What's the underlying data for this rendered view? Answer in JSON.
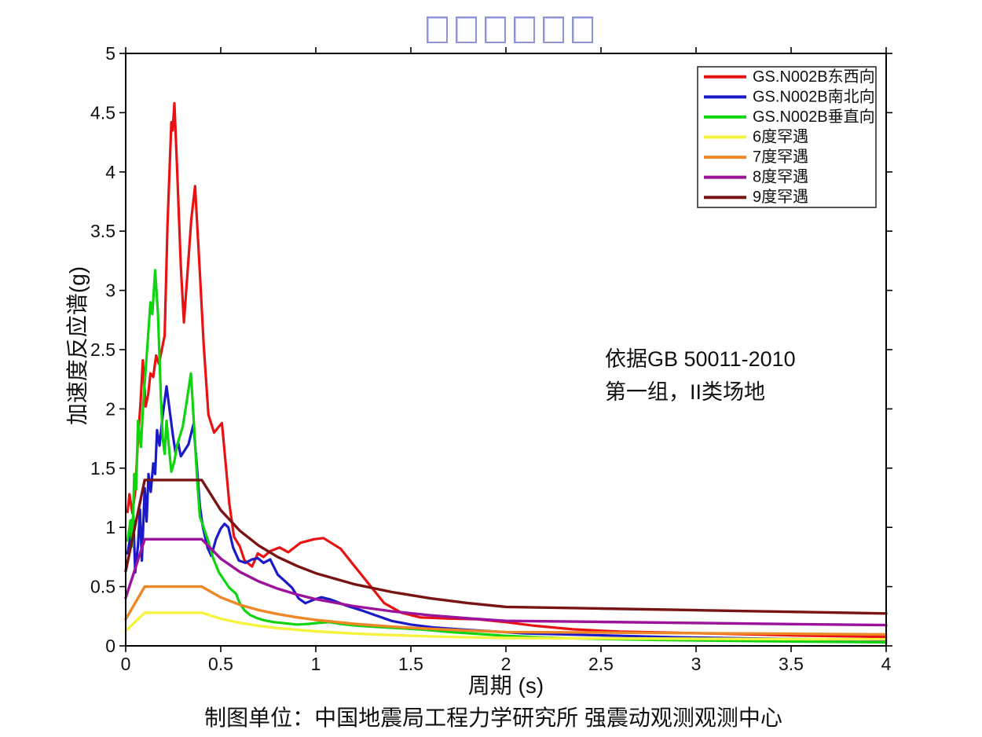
{
  "title": {
    "text": "□□□□□□",
    "rendered_as": "missing-glyph boxes",
    "box_count": 6,
    "box_color": "#8f94d9"
  },
  "annotation": {
    "line1": "依据GB 50011-2010",
    "line2": "第一组，II类场地"
  },
  "caption": {
    "text": "制图单位：中国地震局工程力学研究所 强震动观测观测中心"
  },
  "chart_data": {
    "type": "line",
    "xlabel": "周期 (s)",
    "ylabel": "加速度反应谱(g)",
    "xlim": [
      0,
      4
    ],
    "ylim": [
      0,
      5
    ],
    "x_ticks": [
      "0",
      "0.5",
      "1",
      "1.5",
      "2",
      "2.5",
      "3",
      "3.5",
      "4"
    ],
    "y_ticks": [
      "0",
      "0.5",
      "1",
      "1.5",
      "2",
      "2.5",
      "3",
      "3.5",
      "4",
      "4.5",
      "5"
    ],
    "grid": false,
    "legend_position": "top-right",
    "axis_color": "#000000",
    "series": [
      {
        "id": "ew",
        "name": "GS.N002B东西向",
        "color": "#e81212",
        "width": 3.2,
        "points": [
          [
            0.01,
            1.13
          ],
          [
            0.02,
            1.28
          ],
          [
            0.035,
            1.12
          ],
          [
            0.05,
            1.3
          ],
          [
            0.065,
            1.75
          ],
          [
            0.078,
            2.05
          ],
          [
            0.09,
            2.41
          ],
          [
            0.105,
            2.02
          ],
          [
            0.118,
            2.12
          ],
          [
            0.13,
            2.3
          ],
          [
            0.145,
            2.27
          ],
          [
            0.16,
            2.45
          ],
          [
            0.175,
            2.38
          ],
          [
            0.19,
            2.5
          ],
          [
            0.205,
            2.62
          ],
          [
            0.22,
            3.55
          ],
          [
            0.24,
            4.42
          ],
          [
            0.247,
            4.35
          ],
          [
            0.256,
            4.58
          ],
          [
            0.27,
            4.05
          ],
          [
            0.29,
            3.2
          ],
          [
            0.306,
            2.73
          ],
          [
            0.325,
            3.15
          ],
          [
            0.345,
            3.6
          ],
          [
            0.365,
            3.88
          ],
          [
            0.39,
            3.15
          ],
          [
            0.41,
            2.55
          ],
          [
            0.435,
            1.95
          ],
          [
            0.465,
            1.8
          ],
          [
            0.49,
            1.85
          ],
          [
            0.506,
            1.88
          ],
          [
            0.525,
            1.55
          ],
          [
            0.545,
            1.2
          ],
          [
            0.57,
            0.92
          ],
          [
            0.6,
            0.84
          ],
          [
            0.625,
            0.72
          ],
          [
            0.665,
            0.67
          ],
          [
            0.695,
            0.78
          ],
          [
            0.725,
            0.75
          ],
          [
            0.76,
            0.8
          ],
          [
            0.81,
            0.83
          ],
          [
            0.855,
            0.79
          ],
          [
            0.92,
            0.87
          ],
          [
            0.99,
            0.9
          ],
          [
            1.04,
            0.91
          ],
          [
            1.09,
            0.86
          ],
          [
            1.13,
            0.82
          ],
          [
            1.2,
            0.68
          ],
          [
            1.28,
            0.52
          ],
          [
            1.36,
            0.36
          ],
          [
            1.45,
            0.28
          ],
          [
            1.55,
            0.24
          ],
          [
            1.7,
            0.23
          ],
          [
            1.85,
            0.225
          ],
          [
            2.0,
            0.2
          ],
          [
            2.15,
            0.17
          ],
          [
            2.35,
            0.14
          ],
          [
            2.6,
            0.12
          ],
          [
            2.9,
            0.11
          ],
          [
            3.2,
            0.1
          ],
          [
            3.6,
            0.085
          ],
          [
            4.0,
            0.075
          ]
        ]
      },
      {
        "id": "ns",
        "name": "GS.N002B南北向",
        "color": "#1a1ac9",
        "width": 3.2,
        "points": [
          [
            0.01,
            0.78
          ],
          [
            0.025,
            0.93
          ],
          [
            0.04,
            1.1
          ],
          [
            0.05,
            0.62
          ],
          [
            0.065,
            0.85
          ],
          [
            0.075,
            1.15
          ],
          [
            0.085,
            0.72
          ],
          [
            0.1,
            1.33
          ],
          [
            0.11,
            1.05
          ],
          [
            0.12,
            1.45
          ],
          [
            0.132,
            1.3
          ],
          [
            0.145,
            1.54
          ],
          [
            0.155,
            1.45
          ],
          [
            0.165,
            1.82
          ],
          [
            0.178,
            1.69
          ],
          [
            0.195,
            1.95
          ],
          [
            0.215,
            2.19
          ],
          [
            0.235,
            1.94
          ],
          [
            0.248,
            1.78
          ],
          [
            0.262,
            1.63
          ],
          [
            0.275,
            1.72
          ],
          [
            0.29,
            1.6
          ],
          [
            0.31,
            1.65
          ],
          [
            0.33,
            1.7
          ],
          [
            0.356,
            1.87
          ],
          [
            0.375,
            1.5
          ],
          [
            0.39,
            1.18
          ],
          [
            0.405,
            1.01
          ],
          [
            0.43,
            0.83
          ],
          [
            0.45,
            0.76
          ],
          [
            0.475,
            0.9
          ],
          [
            0.5,
            0.99
          ],
          [
            0.52,
            1.03
          ],
          [
            0.54,
            1.0
          ],
          [
            0.565,
            0.83
          ],
          [
            0.595,
            0.72
          ],
          [
            0.63,
            0.7
          ],
          [
            0.665,
            0.73
          ],
          [
            0.695,
            0.74
          ],
          [
            0.725,
            0.7
          ],
          [
            0.76,
            0.73
          ],
          [
            0.8,
            0.6
          ],
          [
            0.835,
            0.55
          ],
          [
            0.875,
            0.49
          ],
          [
            0.91,
            0.4
          ],
          [
            0.945,
            0.36
          ],
          [
            0.99,
            0.39
          ],
          [
            1.03,
            0.41
          ],
          [
            1.08,
            0.39
          ],
          [
            1.16,
            0.34
          ],
          [
            1.24,
            0.3
          ],
          [
            1.31,
            0.26
          ],
          [
            1.4,
            0.21
          ],
          [
            1.5,
            0.18
          ],
          [
            1.62,
            0.155
          ],
          [
            1.75,
            0.14
          ],
          [
            1.9,
            0.125
          ],
          [
            2.1,
            0.105
          ],
          [
            2.35,
            0.095
          ],
          [
            2.6,
            0.085
          ],
          [
            2.9,
            0.072
          ],
          [
            3.2,
            0.065
          ],
          [
            3.6,
            0.056
          ],
          [
            4.0,
            0.05
          ]
        ]
      },
      {
        "id": "ud",
        "name": "GS.N002B垂直向",
        "color": "#10d410",
        "width": 3.2,
        "points": [
          [
            0.01,
            0.89
          ],
          [
            0.025,
            1.06
          ],
          [
            0.035,
            0.84
          ],
          [
            0.045,
            1.45
          ],
          [
            0.055,
            1.32
          ],
          [
            0.065,
            1.9
          ],
          [
            0.08,
            1.68
          ],
          [
            0.09,
            1.98
          ],
          [
            0.1,
            2.22
          ],
          [
            0.115,
            2.55
          ],
          [
            0.13,
            2.9
          ],
          [
            0.14,
            2.8
          ],
          [
            0.155,
            3.17
          ],
          [
            0.17,
            2.8
          ],
          [
            0.185,
            2.1
          ],
          [
            0.195,
            1.75
          ],
          [
            0.205,
            1.62
          ],
          [
            0.215,
            1.9
          ],
          [
            0.225,
            1.72
          ],
          [
            0.24,
            1.47
          ],
          [
            0.255,
            1.55
          ],
          [
            0.27,
            1.69
          ],
          [
            0.3,
            1.85
          ],
          [
            0.32,
            2.05
          ],
          [
            0.343,
            2.3
          ],
          [
            0.36,
            1.85
          ],
          [
            0.375,
            1.42
          ],
          [
            0.39,
            1.09
          ],
          [
            0.41,
            1.0
          ],
          [
            0.435,
            0.88
          ],
          [
            0.46,
            0.74
          ],
          [
            0.49,
            0.62
          ],
          [
            0.52,
            0.55
          ],
          [
            0.545,
            0.49
          ],
          [
            0.58,
            0.44
          ],
          [
            0.6,
            0.36
          ],
          [
            0.625,
            0.3
          ],
          [
            0.655,
            0.26
          ],
          [
            0.69,
            0.235
          ],
          [
            0.73,
            0.215
          ],
          [
            0.78,
            0.2
          ],
          [
            0.84,
            0.19
          ],
          [
            0.9,
            0.18
          ],
          [
            0.96,
            0.185
          ],
          [
            1.02,
            0.195
          ],
          [
            1.07,
            0.2
          ],
          [
            1.13,
            0.185
          ],
          [
            1.22,
            0.17
          ],
          [
            1.32,
            0.16
          ],
          [
            1.45,
            0.148
          ],
          [
            1.58,
            0.135
          ],
          [
            1.72,
            0.115
          ],
          [
            1.86,
            0.1
          ],
          [
            2.0,
            0.085
          ],
          [
            2.2,
            0.07
          ],
          [
            2.5,
            0.058
          ],
          [
            2.8,
            0.05
          ],
          [
            3.2,
            0.042
          ],
          [
            3.6,
            0.035
          ],
          [
            4.0,
            0.03
          ]
        ]
      },
      {
        "id": "rare6",
        "name": "6度罕遇",
        "color": "#f6f33e",
        "width": 3.4,
        "points": [
          [
            0,
            0.126
          ],
          [
            0.1,
            0.28
          ],
          [
            0.4,
            0.28
          ],
          [
            0.5,
            0.229
          ],
          [
            0.6,
            0.194
          ],
          [
            0.7,
            0.169
          ],
          [
            0.8,
            0.15
          ],
          [
            0.9,
            0.135
          ],
          [
            1.0,
            0.123
          ],
          [
            1.2,
            0.104
          ],
          [
            1.4,
            0.091
          ],
          [
            1.6,
            0.08
          ],
          [
            1.8,
            0.072
          ],
          [
            2.0,
            0.066
          ],
          [
            2.5,
            0.063
          ],
          [
            3.0,
            0.06
          ],
          [
            3.5,
            0.057
          ],
          [
            4.0,
            0.055
          ]
        ]
      },
      {
        "id": "rare7",
        "name": "7度罕遇",
        "color": "#ee8826",
        "width": 3.4,
        "points": [
          [
            0,
            0.225
          ],
          [
            0.1,
            0.5
          ],
          [
            0.4,
            0.5
          ],
          [
            0.5,
            0.409
          ],
          [
            0.6,
            0.347
          ],
          [
            0.7,
            0.302
          ],
          [
            0.8,
            0.268
          ],
          [
            0.9,
            0.241
          ],
          [
            1.0,
            0.219
          ],
          [
            1.2,
            0.186
          ],
          [
            1.4,
            0.162
          ],
          [
            1.6,
            0.144
          ],
          [
            1.8,
            0.129
          ],
          [
            2.0,
            0.117
          ],
          [
            2.5,
            0.112
          ],
          [
            3.0,
            0.107
          ],
          [
            3.5,
            0.102
          ],
          [
            4.0,
            0.097
          ]
        ]
      },
      {
        "id": "rare8",
        "name": "8度罕遇",
        "color": "#9d129b",
        "width": 3.4,
        "points": [
          [
            0,
            0.405
          ],
          [
            0.1,
            0.9
          ],
          [
            0.4,
            0.9
          ],
          [
            0.5,
            0.736
          ],
          [
            0.6,
            0.625
          ],
          [
            0.7,
            0.544
          ],
          [
            0.8,
            0.482
          ],
          [
            0.9,
            0.434
          ],
          [
            1.0,
            0.394
          ],
          [
            1.2,
            0.335
          ],
          [
            1.4,
            0.292
          ],
          [
            1.6,
            0.258
          ],
          [
            1.8,
            0.232
          ],
          [
            2.0,
            0.211
          ],
          [
            2.5,
            0.202
          ],
          [
            3.0,
            0.193
          ],
          [
            3.5,
            0.184
          ],
          [
            4.0,
            0.175
          ]
        ]
      },
      {
        "id": "rare9",
        "name": "9度罕遇",
        "color": "#7a1414",
        "width": 3.4,
        "points": [
          [
            0,
            0.63
          ],
          [
            0.1,
            1.4
          ],
          [
            0.4,
            1.4
          ],
          [
            0.5,
            1.145
          ],
          [
            0.6,
            0.972
          ],
          [
            0.7,
            0.846
          ],
          [
            0.8,
            0.75
          ],
          [
            0.9,
            0.675
          ],
          [
            1.0,
            0.613
          ],
          [
            1.2,
            0.521
          ],
          [
            1.4,
            0.454
          ],
          [
            1.6,
            0.402
          ],
          [
            1.8,
            0.361
          ],
          [
            2.0,
            0.329
          ],
          [
            2.5,
            0.315
          ],
          [
            3.0,
            0.301
          ],
          [
            3.5,
            0.287
          ],
          [
            4.0,
            0.273
          ]
        ]
      }
    ]
  },
  "legend": {
    "border_color": "#222222",
    "items": [
      {
        "label": "GS.N002B东西向",
        "color": "#e81212"
      },
      {
        "label": "GS.N002B南北向",
        "color": "#1a1ac9"
      },
      {
        "label": "GS.N002B垂直向",
        "color": "#10d410"
      },
      {
        "label": "6度罕遇",
        "color": "#f6f33e"
      },
      {
        "label": "7度罕遇",
        "color": "#ee8826"
      },
      {
        "label": "8度罕遇",
        "color": "#9d129b"
      },
      {
        "label": "9度罕遇",
        "color": "#7a1414"
      }
    ]
  }
}
